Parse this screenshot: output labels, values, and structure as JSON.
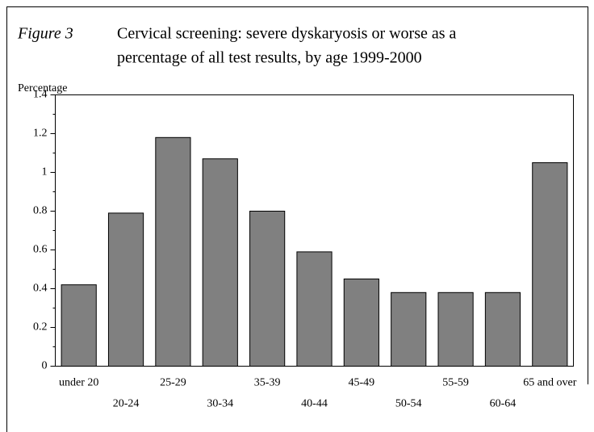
{
  "chart_data": {
    "type": "bar",
    "figure_label": "Figure 3",
    "title": [
      "Cervical screening: severe dyskaryosis or worse as a",
      "percentage of all test results, by age 1999-2000"
    ],
    "y_label": "Percentage",
    "categories": [
      "under 20",
      "20-24",
      "25-29",
      "30-34",
      "35-39",
      "40-44",
      "45-49",
      "50-54",
      "55-59",
      "60-64",
      "65 and over"
    ],
    "values": [
      0.42,
      0.79,
      1.18,
      1.07,
      0.8,
      0.59,
      0.45,
      0.38,
      0.38,
      0.38,
      1.05
    ],
    "color": "#808080",
    "ylim": [
      0,
      1.4
    ],
    "yticks": [
      0,
      0.2,
      0.4,
      0.6,
      0.8,
      1,
      1.2,
      1.4
    ],
    "minor_yticks": [
      0.1,
      0.3,
      0.5,
      0.7,
      0.9,
      1.1,
      1.3
    ],
    "grid": false
  }
}
